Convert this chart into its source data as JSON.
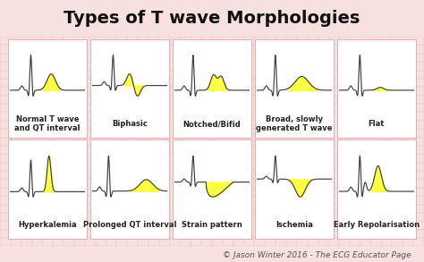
{
  "title": "Types of T wave Morphologies",
  "copyright": "© Jason Winter 2016 - The ECG Educator Page",
  "bg_outer": "#f7e0e0",
  "bg_inner": "#fdf0f0",
  "grid_color": "#f0b0b0",
  "card_color": "#ffffff",
  "card_border": "#e8b0b0",
  "line_color": "#404040",
  "fill_color": "#ffff44",
  "title_fontsize": 14,
  "label_fontsize": 6.0,
  "copyright_fontsize": 6.5,
  "panels": [
    {
      "label": "Normal T wave\nand QT interval",
      "type": "normal"
    },
    {
      "label": "Biphasic",
      "type": "biphasic"
    },
    {
      "label": "Notched/Bifid",
      "type": "notched"
    },
    {
      "label": "Broad, slowly\ngenerated T wave",
      "type": "broad"
    },
    {
      "label": "Flat",
      "type": "flat"
    },
    {
      "label": "Hyperkalemia",
      "type": "hyperkalemia"
    },
    {
      "label": "Prolonged QT interval",
      "type": "prolonged_qt"
    },
    {
      "label": "Strain pattern",
      "type": "strain"
    },
    {
      "label": "Ischemia",
      "type": "ischemia"
    },
    {
      "label": "Early Repolarisation",
      "type": "early_repol"
    }
  ]
}
